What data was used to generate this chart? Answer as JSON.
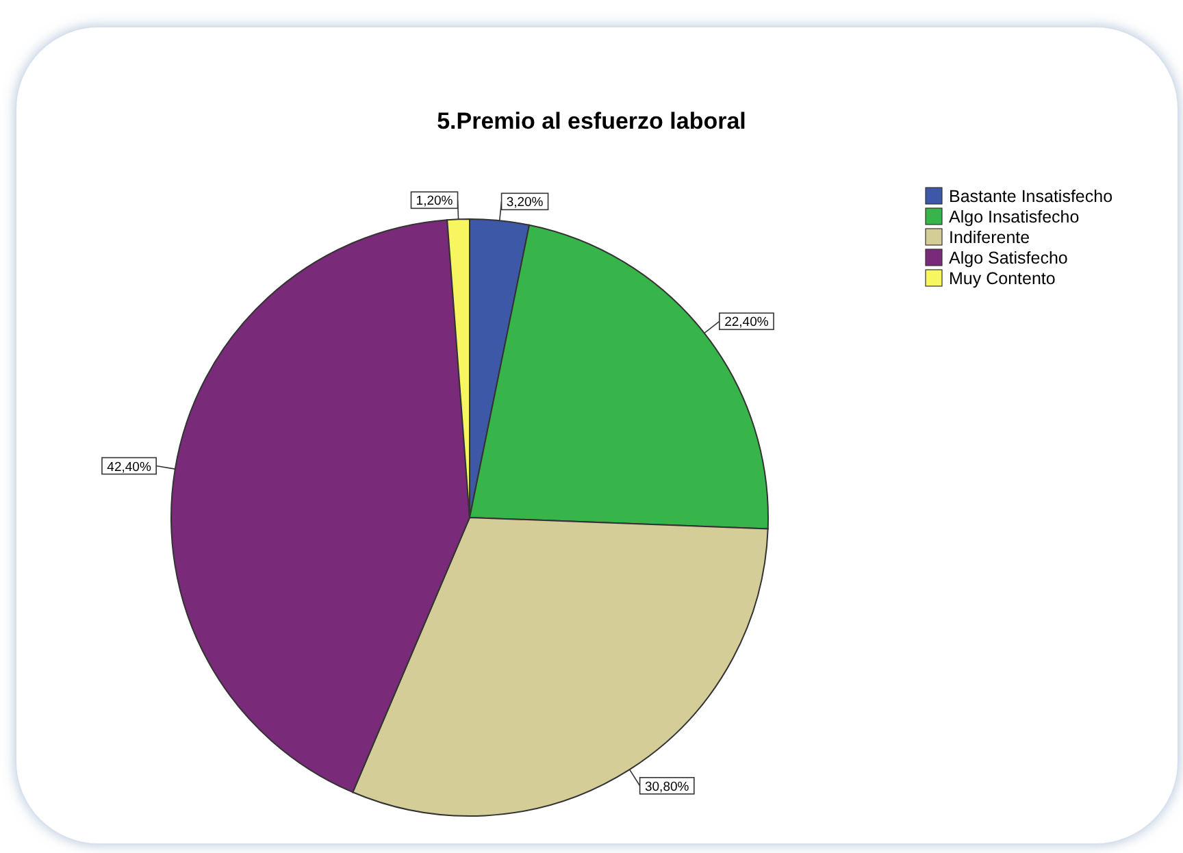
{
  "chart_data": {
    "type": "pie",
    "title": "5.Premio al esfuerzo laboral",
    "categories": [
      "Bastante Insatisfecho",
      "Algo Insatisfecho",
      "Indiferente",
      "Algo Satisfecho",
      "Muy Contento"
    ],
    "values": [
      3.2,
      22.4,
      30.8,
      42.4,
      1.2
    ],
    "value_labels": [
      "3,20%",
      "22,40%",
      "30,80%",
      "42,40%",
      "1,20%"
    ],
    "colors": [
      "#3e58a8",
      "#38b54a",
      "#d4cd98",
      "#792a78",
      "#f8f660"
    ],
    "legend": "top right"
  }
}
